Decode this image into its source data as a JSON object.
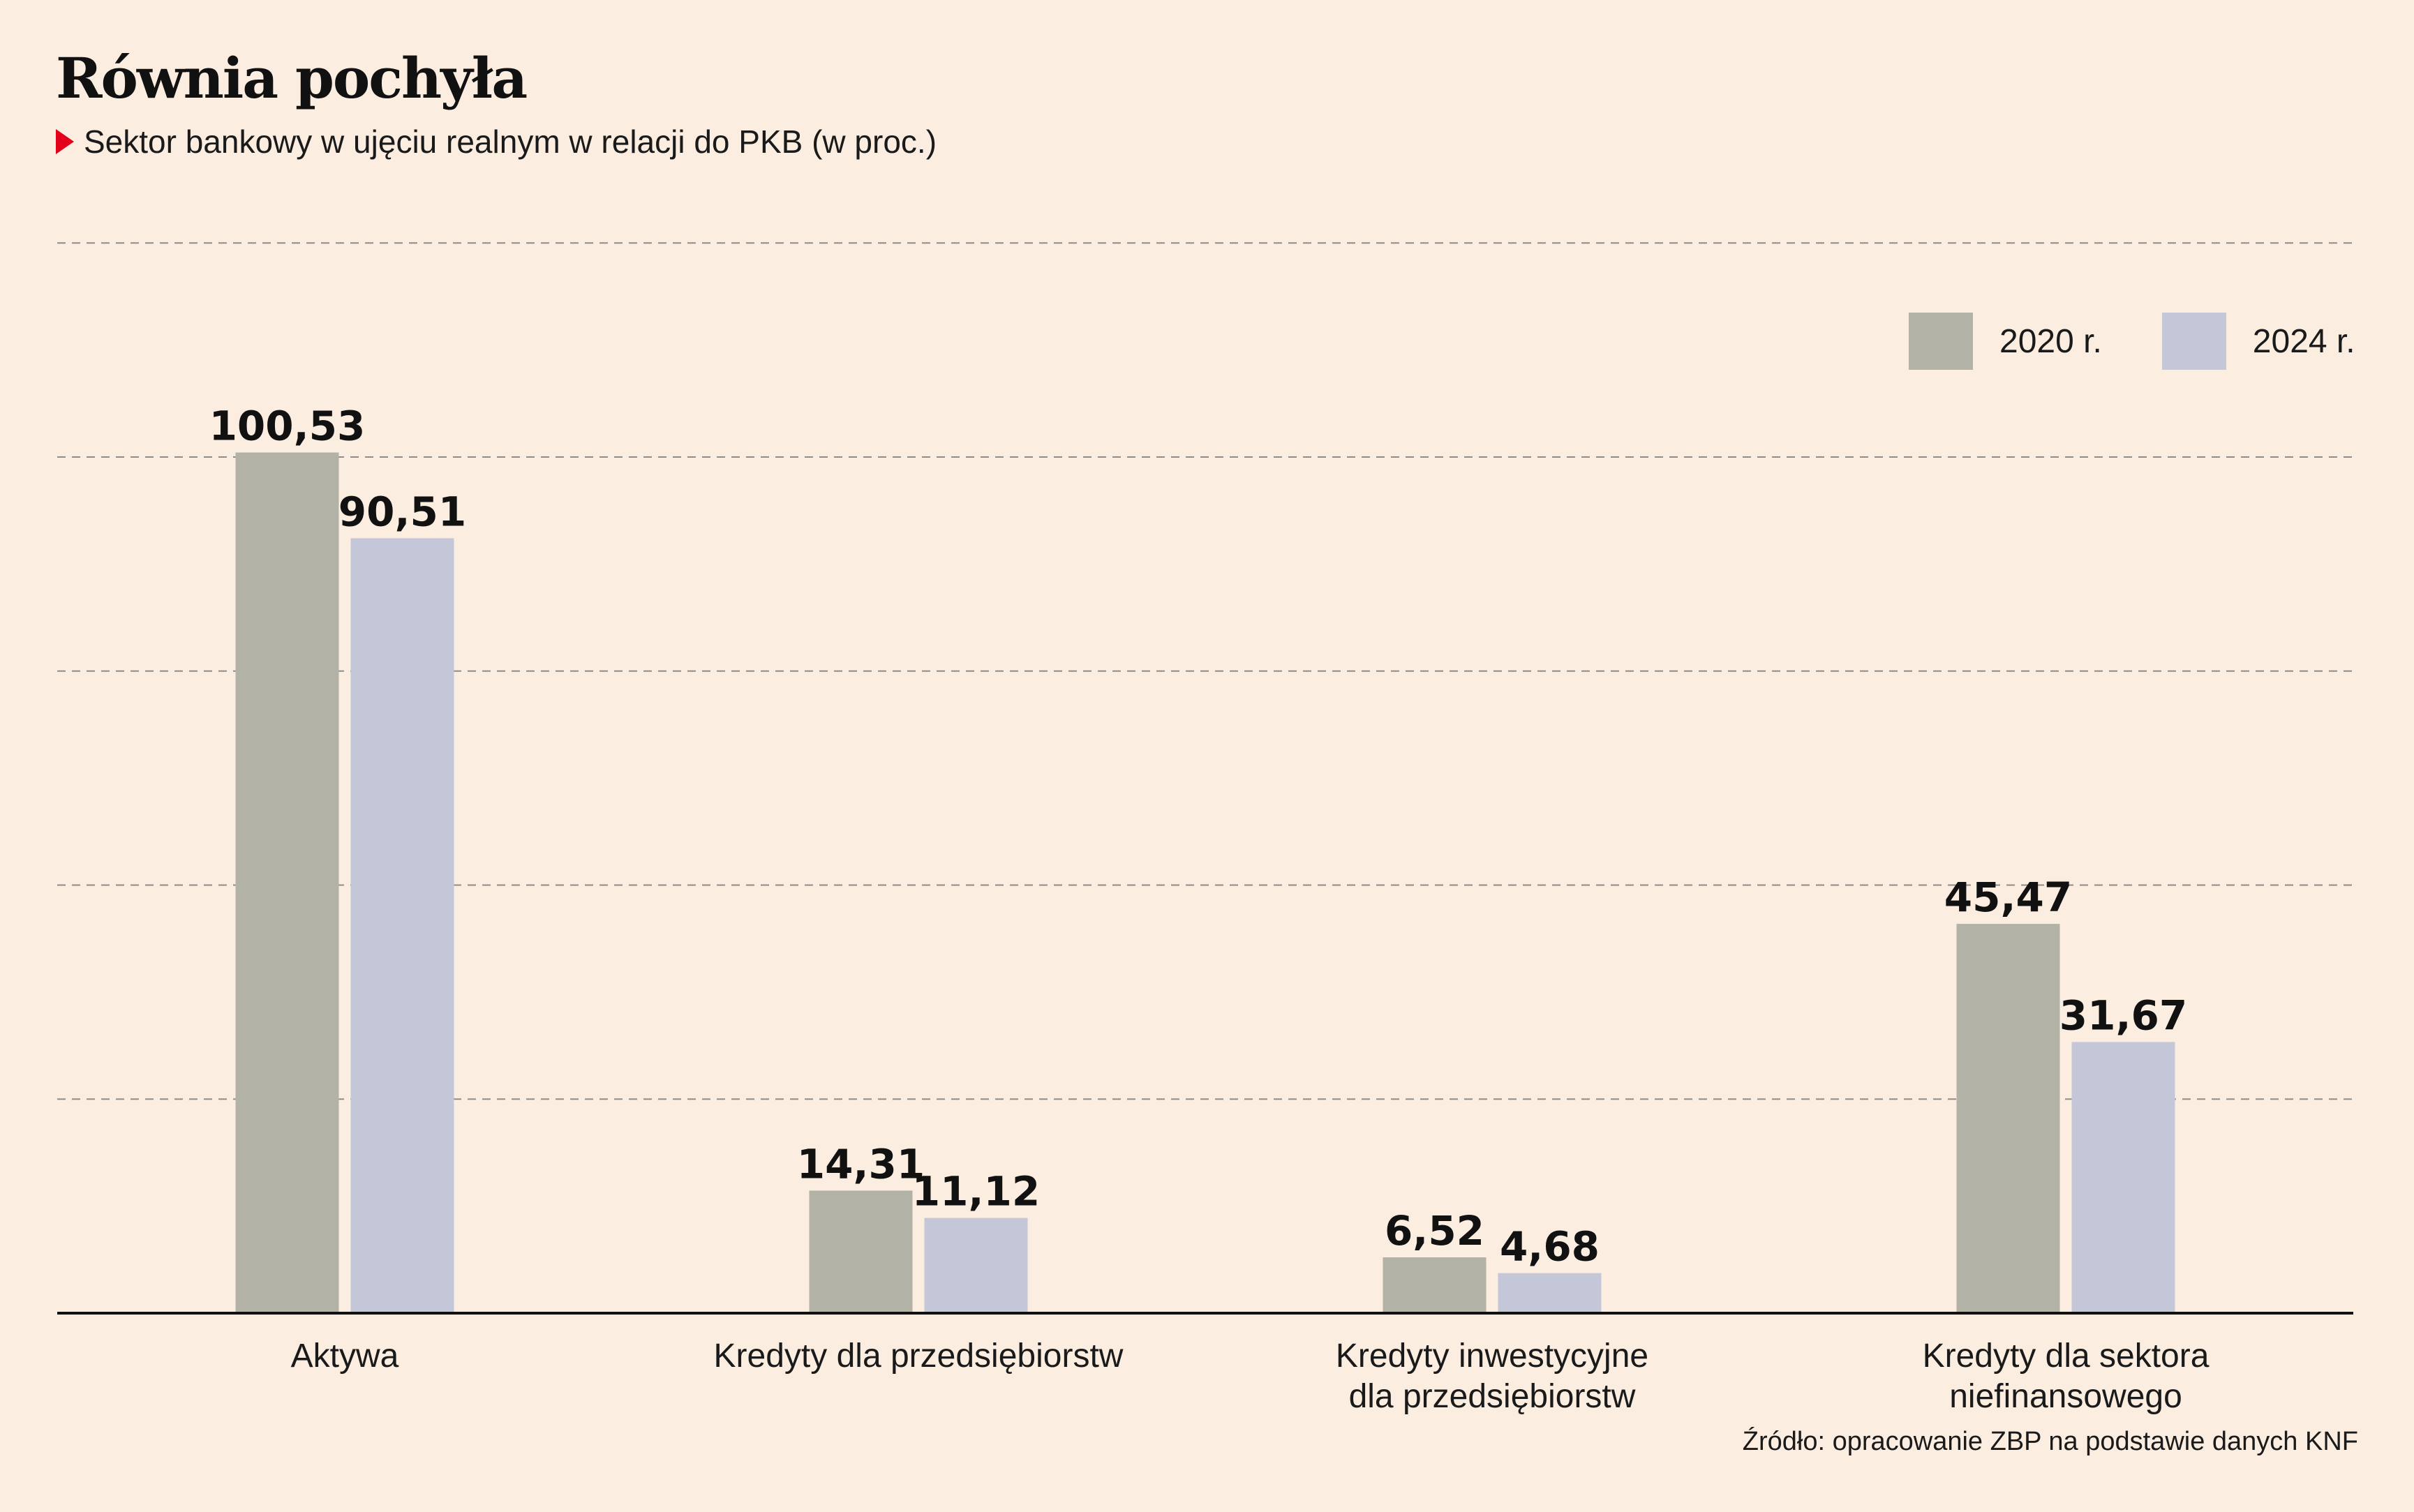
{
  "title": "Równia pochyła",
  "subtitle": "Sektor bankowy w ujęciu realnym w relacji do PKB (w proc.)",
  "source": "Źródło: opracowanie ZBP na podstawie danych KNF",
  "colors": {
    "background": "#fbeee1",
    "series_2020": "#b3b2a7",
    "series_2024": "#c3c7d8",
    "accent": "#e3001b"
  },
  "chart_data": {
    "type": "bar",
    "title": "Równia pochyła",
    "subtitle": "Sektor bankowy w ujęciu realnym w relacji do PKB (w proc.)",
    "categories": [
      [
        "Aktywa"
      ],
      [
        "Kredyty dla przedsiębiorstw"
      ],
      [
        "Kredyty inwestycyjne",
        "dla przedsiębiorstw"
      ],
      [
        "Kredyty dla sektora",
        "niefinansowego"
      ]
    ],
    "series": [
      {
        "name": "2020 r.",
        "color": "#b3b2a7",
        "values": [
          100.53,
          14.31,
          6.52,
          45.47
        ],
        "labels": [
          "100,53",
          "14,31",
          "6,52",
          "45,47"
        ]
      },
      {
        "name": "2024 r.",
        "color": "#c3c7d8",
        "values": [
          90.51,
          11.12,
          4.68,
          31.67
        ],
        "labels": [
          "90,51",
          "11,12",
          "4,68",
          "31,67"
        ]
      }
    ],
    "ylim": [
      0,
      125
    ],
    "grid": true,
    "grid_style": "dashed",
    "legend_position": "top-right"
  }
}
